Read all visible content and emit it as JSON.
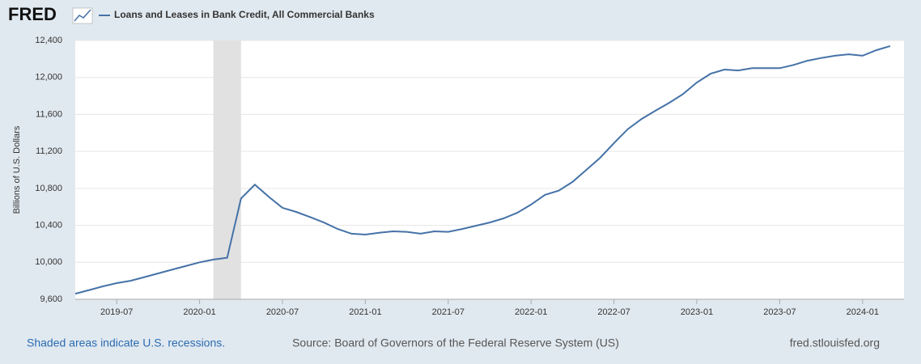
{
  "chart_data": {
    "type": "line",
    "logo": "FRED",
    "title": "Loans and Leases in Bank Credit, All Commercial Banks",
    "y_label": "Billions of U.S. Dollars",
    "recession_note": "Shaded areas indicate U.S. recessions.",
    "source": "Source: Board of Governors of the Federal Reserve System (US)",
    "site": "fred.stlouisfed.org",
    "recessions": [
      {
        "start": "2020-02",
        "end": "2020-04"
      }
    ],
    "x": [
      "2019-04",
      "2019-05",
      "2019-06",
      "2019-07",
      "2019-08",
      "2019-09",
      "2019-10",
      "2019-11",
      "2019-12",
      "2020-01",
      "2020-02",
      "2020-03",
      "2020-04",
      "2020-05",
      "2020-06",
      "2020-07",
      "2020-08",
      "2020-09",
      "2020-10",
      "2020-11",
      "2020-12",
      "2021-01",
      "2021-02",
      "2021-03",
      "2021-04",
      "2021-05",
      "2021-06",
      "2021-07",
      "2021-08",
      "2021-09",
      "2021-10",
      "2021-11",
      "2021-12",
      "2022-01",
      "2022-02",
      "2022-03",
      "2022-04",
      "2022-05",
      "2022-06",
      "2022-07",
      "2022-08",
      "2022-09",
      "2022-10",
      "2022-11",
      "2022-12",
      "2023-01",
      "2023-02",
      "2023-03",
      "2023-04",
      "2023-05",
      "2023-06",
      "2023-07",
      "2023-08",
      "2023-09",
      "2023-10",
      "2023-11",
      "2023-12",
      "2024-01",
      "2024-02",
      "2024-03"
    ],
    "series": [
      {
        "name": "Loans and Leases in Bank Credit, All Commercial Banks",
        "color": "#4572a7",
        "values": [
          9660,
          9700,
          9740,
          9775,
          9800,
          9840,
          9880,
          9920,
          9960,
          10000,
          10030,
          10050,
          10690,
          10840,
          10710,
          10590,
          10545,
          10490,
          10430,
          10360,
          10310,
          10300,
          10320,
          10335,
          10330,
          10310,
          10335,
          10330,
          10360,
          10395,
          10430,
          10475,
          10535,
          10625,
          10730,
          10775,
          10870,
          11000,
          11130,
          11290,
          11440,
          11550,
          11640,
          11725,
          11820,
          11945,
          12040,
          12085,
          12075,
          12100,
          12100,
          12100,
          12135,
          12180,
          12210,
          12235,
          12250,
          12235,
          12295,
          12340
        ]
      }
    ],
    "xlim": [
      "2019-04",
      "2024-04"
    ],
    "xticks": [
      "2019-07",
      "2020-01",
      "2020-07",
      "2021-01",
      "2021-07",
      "2022-01",
      "2022-07",
      "2023-01",
      "2023-07",
      "2024-01"
    ],
    "ylim": [
      9600,
      12400
    ],
    "yticks": [
      {
        "value": 9600,
        "label": "9,600"
      },
      {
        "value": 10000,
        "label": "10,000"
      },
      {
        "value": 10400,
        "label": "10,400"
      },
      {
        "value": 10800,
        "label": "10,800"
      },
      {
        "value": 11200,
        "label": "11,200"
      },
      {
        "value": 11600,
        "label": "11,600"
      },
      {
        "value": 12000,
        "label": "12,000"
      },
      {
        "value": 12400,
        "label": "12,400"
      }
    ],
    "grid": true
  }
}
